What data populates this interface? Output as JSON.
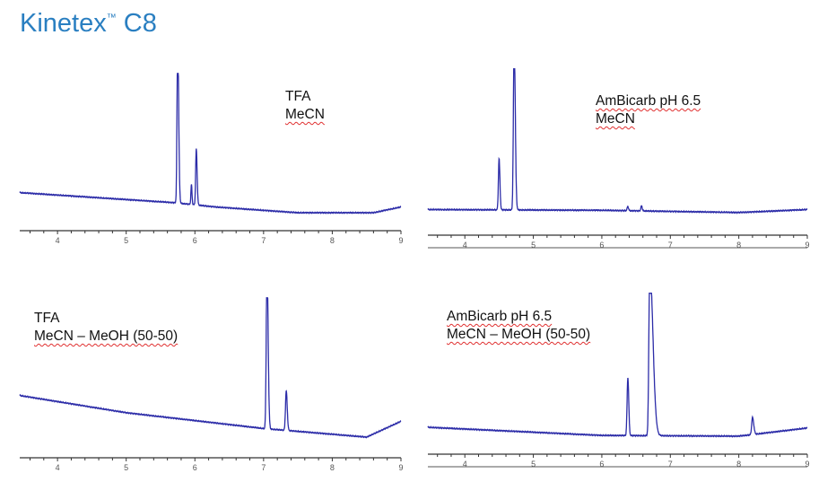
{
  "title": {
    "text": "Kinetex",
    "trademark": "™",
    "suffix": " C8",
    "color": "#2a7fc1"
  },
  "trace_color": "#2c2ca8",
  "chart_data": [
    {
      "type": "line",
      "labels": [
        "TFA",
        "MeCN"
      ],
      "xlim": [
        3.45,
        9.0
      ],
      "ylim": [
        0,
        1
      ],
      "x_ticks": [
        "4",
        "5",
        "6",
        "7",
        "8",
        "9"
      ],
      "baseline": [
        [
          3.45,
          0.19
        ],
        [
          5.7,
          0.12
        ],
        [
          6.3,
          0.09
        ],
        [
          7.5,
          0.05
        ],
        [
          8.6,
          0.05
        ],
        [
          9.0,
          0.09
        ]
      ],
      "peaks": [
        {
          "rt": 5.75,
          "height": 1.0,
          "sigma_left": 0.01,
          "sigma_right": 0.014
        },
        {
          "rt": 5.95,
          "height": 0.12,
          "sigma_left": 0.008,
          "sigma_right": 0.008
        },
        {
          "rt": 6.02,
          "height": 0.34,
          "sigma_left": 0.009,
          "sigma_right": 0.012
        }
      ]
    },
    {
      "type": "line",
      "labels": [
        "AmBicarb pH 6.5",
        "MeCN"
      ],
      "xlim": [
        3.46,
        9.0
      ],
      "ylim": [
        0,
        1
      ],
      "x_ticks": [
        "4",
        "5",
        "6",
        "7",
        "8",
        "9"
      ],
      "baseline": [
        [
          3.46,
          0.07
        ],
        [
          6.0,
          0.065
        ],
        [
          8.0,
          0.05
        ],
        [
          9.0,
          0.07
        ]
      ],
      "peaks": [
        {
          "rt": 4.5,
          "height": 0.3,
          "sigma_left": 0.01,
          "sigma_right": 0.012
        },
        {
          "rt": 4.72,
          "height": 1.0,
          "sigma_left": 0.011,
          "sigma_right": 0.016
        },
        {
          "rt": 6.38,
          "height": 0.025,
          "sigma_left": 0.01,
          "sigma_right": 0.01
        },
        {
          "rt": 6.58,
          "height": 0.03,
          "sigma_left": 0.01,
          "sigma_right": 0.01
        }
      ]
    },
    {
      "type": "line",
      "labels": [
        "TFA",
        "MeCN – MeOH (50-50)"
      ],
      "xlim": [
        3.45,
        9.0
      ],
      "ylim": [
        0,
        1
      ],
      "x_ticks": [
        "4",
        "5",
        "6",
        "7",
        "8",
        "9"
      ],
      "baseline": [
        [
          3.45,
          0.34
        ],
        [
          5.0,
          0.22
        ],
        [
          7.0,
          0.11
        ],
        [
          8.5,
          0.05
        ],
        [
          9.0,
          0.16
        ]
      ],
      "peaks": [
        {
          "rt": 7.05,
          "height": 1.0,
          "sigma_left": 0.011,
          "sigma_right": 0.016
        },
        {
          "rt": 7.33,
          "height": 0.24,
          "sigma_left": 0.011,
          "sigma_right": 0.014
        }
      ]
    },
    {
      "type": "line",
      "labels": [
        "AmBicarb pH 6.5",
        "MeCN – MeOH (50-50)"
      ],
      "xlim": [
        3.46,
        9.0
      ],
      "ylim": [
        0,
        1
      ],
      "x_ticks": [
        "4",
        "5",
        "6",
        "7",
        "8",
        "9"
      ],
      "baseline": [
        [
          3.46,
          0.115
        ],
        [
          6.0,
          0.06
        ],
        [
          8.0,
          0.055
        ],
        [
          9.0,
          0.11
        ]
      ],
      "peaks": [
        {
          "rt": 6.38,
          "height": 0.34,
          "sigma_left": 0.011,
          "sigma_right": 0.013
        },
        {
          "rt": 6.7,
          "height": 1.0,
          "sigma_left": 0.013,
          "sigma_right": 0.045
        },
        {
          "rt": 8.2,
          "height": 0.1,
          "sigma_left": 0.012,
          "sigma_right": 0.018
        }
      ]
    }
  ]
}
